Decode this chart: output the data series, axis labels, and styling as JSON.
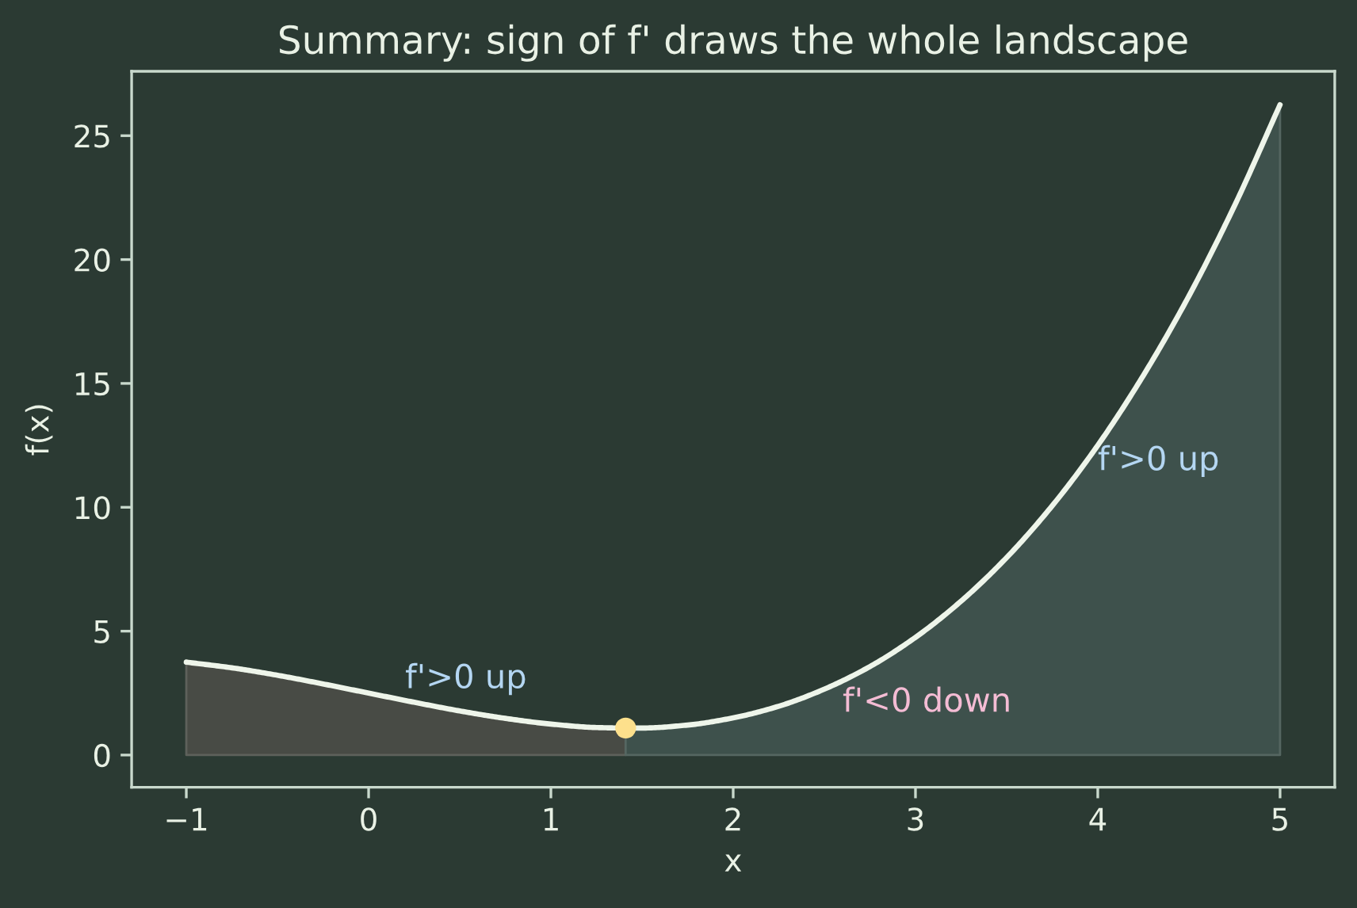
{
  "chart_data": {
    "type": "line",
    "title": "Summary: sign of f' draws the whole landscape",
    "xlabel": "x",
    "ylabel": "f(x)",
    "xlim": [
      -1.3,
      5.3
    ],
    "ylim": [
      -1.3,
      27.6
    ],
    "xticks": [
      {
        "value": -1,
        "label": "−1"
      },
      0,
      1,
      2,
      3,
      4,
      5
    ],
    "yticks": [
      0,
      5,
      10,
      15,
      20,
      25
    ],
    "grid": false,
    "series": [
      {
        "type": "area",
        "color": "#484b45",
        "x": [
          -1,
          -0.75,
          -0.5,
          -0.25,
          0,
          0.25,
          0.5,
          0.75,
          1,
          1.25,
          1.41
        ],
        "values": [
          3.75,
          3.52,
          3.22,
          2.87,
          2.5,
          2.13,
          1.78,
          1.48,
          1.25,
          1.11,
          1.09
        ]
      },
      {
        "type": "area",
        "color": "#3e514c",
        "x": [
          1.41,
          1.5,
          1.75,
          2,
          2.25,
          2.5,
          2.75,
          3,
          3.25,
          3.5,
          3.75,
          4,
          4.25,
          4.5,
          4.75,
          5
        ],
        "values": [
          1.09,
          1.09,
          1.21,
          1.5,
          1.97,
          2.66,
          3.57,
          4.75,
          6.21,
          7.97,
          10.06,
          12.5,
          15.32,
          18.53,
          22.17,
          26.25
        ]
      },
      {
        "color": "#eef5ea",
        "line_style": "solid",
        "x": [
          -1,
          -0.75,
          -0.5,
          -0.25,
          0,
          0.25,
          0.5,
          0.75,
          1,
          1.25,
          1.41,
          1.5,
          1.75,
          2,
          2.25,
          2.5,
          2.75,
          3,
          3.25,
          3.5,
          3.75,
          4,
          4.25,
          4.5,
          4.75,
          5
        ],
        "values": [
          3.75,
          3.52,
          3.22,
          2.87,
          2.5,
          2.13,
          1.78,
          1.48,
          1.25,
          1.11,
          1.09,
          1.09,
          1.21,
          1.5,
          1.97,
          2.66,
          3.57,
          4.75,
          6.21,
          7.97,
          10.06,
          12.5,
          15.32,
          18.53,
          22.17,
          26.25
        ]
      },
      {
        "type": "scatter",
        "color": "#fde08c",
        "marker": "circle",
        "x": [
          1.41
        ],
        "values": [
          1.09
        ]
      }
    ],
    "annotations": [
      "f'>0 up",
      "f'<0 down",
      "f'>0 up"
    ]
  }
}
